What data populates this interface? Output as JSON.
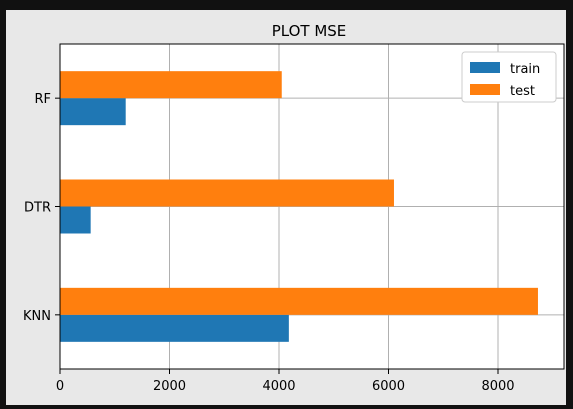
{
  "chart_data": {
    "type": "bar",
    "orientation": "horizontal",
    "title": "PLOT MSE",
    "xlabel": "",
    "ylabel": "",
    "categories": [
      "KNN",
      "DTR",
      "RF"
    ],
    "series": [
      {
        "name": "train",
        "color": "#1f77b4",
        "values": [
          4180,
          560,
          1200
        ]
      },
      {
        "name": "test",
        "color": "#ff7f0e",
        "values": [
          8730,
          6100,
          4050
        ]
      }
    ],
    "xlim": [
      0,
      9000
    ],
    "xticks": [
      0,
      2000,
      4000,
      6000,
      8000
    ],
    "grid": true,
    "legend_position": "top-right"
  }
}
